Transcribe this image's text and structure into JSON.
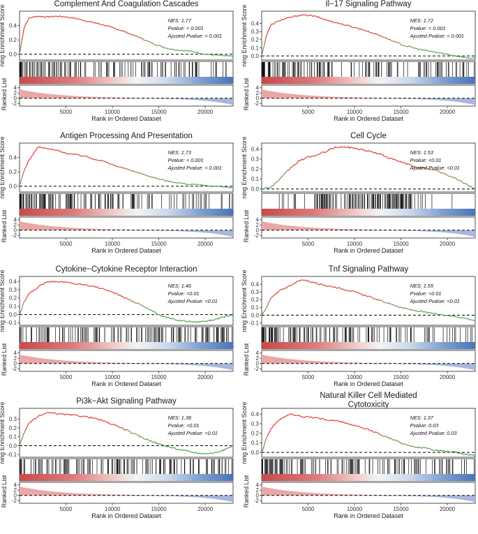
{
  "chart_data": [
    {
      "type": "line",
      "title": "Complement And Coagulation Cascades",
      "ylabel": "ning Enrichment Score",
      "ylabel2": "Ranked List",
      "xlabel": "Rank in Ordered Dataset",
      "x_ticks": [
        5000,
        10000,
        15000,
        20000
      ],
      "es_ticks": [
        0.0,
        0.2,
        0.4
      ],
      "rank_ticks": [
        4,
        2,
        0,
        -2
      ],
      "xlim": [
        0,
        23000
      ],
      "es_ylim": [
        -0.08,
        0.6
      ],
      "rank_ylim": [
        -3,
        5
      ],
      "stats": [
        "NES: 1.77",
        "Pvalue: < 0.001",
        "Ajusted Pvalue: < 0.001"
      ],
      "es_curve": {
        "x": [
          0,
          500,
          1000,
          1500,
          2000,
          3000,
          4000,
          5000,
          6000,
          7000,
          8000,
          9000,
          10000,
          11000,
          12000,
          13000,
          14000,
          15000,
          16000,
          17000,
          18000,
          19000,
          20000,
          21000,
          22000,
          23000
        ],
        "y": [
          0.0,
          0.38,
          0.5,
          0.52,
          0.53,
          0.52,
          0.53,
          0.52,
          0.5,
          0.47,
          0.44,
          0.41,
          0.37,
          0.33,
          0.28,
          0.23,
          0.17,
          0.12,
          0.08,
          0.06,
          0.05,
          0.03,
          0.0,
          -0.01,
          -0.02,
          -0.03
        ]
      },
      "hit_density": "front"
    },
    {
      "type": "line",
      "title": "Il−17 Signaling Pathway",
      "ylabel": "ning Enrichment Score",
      "ylabel2": "Ranked List",
      "xlabel": "Rank in Ordered Dataset",
      "x_ticks": [
        5000,
        10000,
        15000,
        20000
      ],
      "es_ticks": [
        0.0,
        0.1,
        0.2,
        0.3,
        0.4
      ],
      "rank_ticks": [
        4,
        2,
        0,
        -2
      ],
      "xlim": [
        0,
        23000
      ],
      "es_ylim": [
        -0.05,
        0.55
      ],
      "rank_ylim": [
        -3,
        5
      ],
      "stats": [
        "NES: 1.72",
        "Pvalue: < 0.001",
        "Ajusted Pvalue: < 0.001"
      ],
      "es_curve": {
        "x": [
          0,
          500,
          1000,
          2000,
          3000,
          4000,
          5000,
          6000,
          7000,
          8000,
          9000,
          10000,
          11000,
          12000,
          13000,
          14000,
          15000,
          16000,
          17000,
          18000,
          19000,
          20000,
          21000,
          22000,
          23000
        ],
        "y": [
          0.0,
          0.25,
          0.38,
          0.44,
          0.47,
          0.5,
          0.5,
          0.48,
          0.44,
          0.41,
          0.38,
          0.35,
          0.32,
          0.28,
          0.24,
          0.19,
          0.14,
          0.11,
          0.08,
          0.06,
          0.04,
          0.02,
          0.0,
          -0.02,
          -0.03
        ]
      },
      "hit_density": "front"
    },
    {
      "type": "line",
      "title": "Antigen Processing And Presentation",
      "ylabel": "ning Enrichment Score",
      "ylabel2": "Ranked List",
      "xlabel": "Rank in Ordered Dataset",
      "x_ticks": [
        5000,
        10000,
        15000,
        20000
      ],
      "es_ticks": [
        0.0,
        0.2,
        0.4
      ],
      "rank_ticks": [
        4,
        2,
        0,
        -2
      ],
      "xlim": [
        0,
        23000
      ],
      "es_ylim": [
        -0.08,
        0.6
      ],
      "rank_ylim": [
        -3,
        5
      ],
      "stats": [
        "NES: 1.73",
        "Pvalue: < 0.001",
        "Ajusted Pvalue: < 0.001"
      ],
      "es_curve": {
        "x": [
          0,
          500,
          1000,
          1500,
          2000,
          3000,
          4000,
          5000,
          6000,
          7000,
          8000,
          9000,
          10000,
          11000,
          12000,
          13000,
          14000,
          15000,
          16000,
          17000,
          18000,
          19000,
          20000,
          21000,
          22000,
          23000
        ],
        "y": [
          0.0,
          0.22,
          0.36,
          0.45,
          0.55,
          0.52,
          0.5,
          0.46,
          0.44,
          0.42,
          0.38,
          0.35,
          0.3,
          0.26,
          0.22,
          0.18,
          0.14,
          0.1,
          0.07,
          0.05,
          0.03,
          0.02,
          0.01,
          0.0,
          -0.01,
          -0.02
        ]
      },
      "hit_density": "front"
    },
    {
      "type": "line",
      "title": "Cell Cycle",
      "ylabel": "ning Enrichment Score",
      "ylabel2": "Ranked List",
      "xlabel": "Rank in Ordered Dataset",
      "x_ticks": [
        5000,
        10000,
        15000,
        20000
      ],
      "es_ticks": [
        0.0,
        0.1,
        0.2,
        0.3,
        0.4
      ],
      "rank_ticks": [
        4,
        2,
        0,
        -2
      ],
      "xlim": [
        0,
        23000
      ],
      "es_ylim": [
        -0.03,
        0.46
      ],
      "rank_ylim": [
        -3,
        5
      ],
      "stats": [
        "NES: 1.53",
        "Pvalue: <0.01",
        "Ajusted Pvalue: <0.01"
      ],
      "es_curve": {
        "x": [
          0,
          1000,
          2000,
          3000,
          4000,
          5000,
          6000,
          7000,
          8000,
          9000,
          10000,
          11000,
          12000,
          13000,
          14000,
          15000,
          16000,
          17000,
          18000,
          19000,
          20000,
          21000,
          22000,
          23000
        ],
        "y": [
          0.0,
          0.02,
          0.1,
          0.2,
          0.28,
          0.32,
          0.34,
          0.38,
          0.42,
          0.42,
          0.41,
          0.39,
          0.37,
          0.34,
          0.3,
          0.27,
          0.24,
          0.21,
          0.2,
          0.18,
          0.14,
          0.1,
          0.05,
          0.0
        ]
      },
      "hit_density": "middle"
    },
    {
      "type": "line",
      "title": "Cytokine−Cytokine Receptor Interaction",
      "ylabel": "ning Enrichment Score",
      "ylabel2": "Ranked List",
      "xlabel": "Rank in Ordered Dataset",
      "x_ticks": [
        5000,
        10000,
        15000,
        20000
      ],
      "es_ticks": [
        -0.1,
        0.0,
        0.1,
        0.2,
        0.3,
        0.4
      ],
      "rank_ticks": [
        4,
        2,
        0,
        -2
      ],
      "xlim": [
        0,
        23000
      ],
      "es_ylim": [
        -0.13,
        0.46
      ],
      "rank_ylim": [
        -3,
        5
      ],
      "stats": [
        "NES: 1.46",
        "Pvalue: <0.01",
        "Ajusted Pvalue: <0.01"
      ],
      "es_curve": {
        "x": [
          0,
          500,
          1000,
          2000,
          3000,
          4000,
          5000,
          6000,
          7000,
          8000,
          9000,
          10000,
          11000,
          12000,
          13000,
          14000,
          15000,
          16000,
          17000,
          18000,
          19000,
          20000,
          21000,
          22000,
          23000
        ],
        "y": [
          0.0,
          0.15,
          0.25,
          0.33,
          0.4,
          0.4,
          0.39,
          0.37,
          0.36,
          0.34,
          0.31,
          0.27,
          0.22,
          0.17,
          0.12,
          0.06,
          0.0,
          -0.04,
          -0.07,
          -0.08,
          -0.09,
          -0.08,
          -0.06,
          -0.03,
          0.0
        ]
      },
      "hit_density": "uniform"
    },
    {
      "type": "line",
      "title": "Tnf Signaling Pathway",
      "ylabel": "ning Enrichment Score",
      "ylabel2": "Ranked List",
      "xlabel": "Rank in Ordered Dataset",
      "x_ticks": [
        5000,
        10000,
        15000,
        20000
      ],
      "es_ticks": [
        -0.1,
        0.0,
        0.1,
        0.2,
        0.3,
        0.4
      ],
      "rank_ticks": [
        4,
        2,
        0,
        -2
      ],
      "xlim": [
        0,
        23000
      ],
      "es_ylim": [
        -0.13,
        0.5
      ],
      "rank_ylim": [
        -3,
        5
      ],
      "stats": [
        "NES: 1.55",
        "Pvalue: <0.01",
        "Ajusted Pvalue: <0.01"
      ],
      "es_curve": {
        "x": [
          0,
          500,
          1000,
          2000,
          3000,
          4000,
          4500,
          5000,
          6000,
          7000,
          8000,
          9000,
          10000,
          11000,
          12000,
          13000,
          14000,
          15000,
          16000,
          17000,
          18000,
          19000,
          20000,
          21000,
          22000,
          23000
        ],
        "y": [
          0.0,
          0.1,
          0.22,
          0.32,
          0.38,
          0.44,
          0.46,
          0.44,
          0.41,
          0.38,
          0.36,
          0.33,
          0.3,
          0.26,
          0.22,
          0.18,
          0.14,
          0.1,
          0.07,
          0.05,
          0.03,
          0.01,
          0.0,
          -0.02,
          -0.04,
          -0.07
        ]
      },
      "hit_density": "front"
    },
    {
      "type": "line",
      "title": "Pi3k−Akt Signaling Pathway",
      "ylabel": "ning Enrichment Score",
      "ylabel2": "Ranked List",
      "xlabel": "Rank in Ordered Dataset",
      "x_ticks": [
        5000,
        10000,
        15000,
        20000
      ],
      "es_ticks": [
        -0.1,
        0.0,
        0.1,
        0.2,
        0.3
      ],
      "rank_ticks": [
        4,
        2,
        0,
        -2
      ],
      "xlim": [
        0,
        23000
      ],
      "es_ylim": [
        -0.13,
        0.42
      ],
      "rank_ylim": [
        -3,
        5
      ],
      "stats": [
        "NES: 1.38",
        "Pvalue: <0.01",
        "Ajusted Pvalue: <0.01"
      ],
      "es_curve": {
        "x": [
          0,
          500,
          1000,
          2000,
          3000,
          4000,
          5000,
          6000,
          7000,
          8000,
          9000,
          10000,
          11000,
          12000,
          13000,
          14000,
          15000,
          16000,
          17000,
          18000,
          19000,
          20000,
          21000,
          22000,
          23000
        ],
        "y": [
          0.0,
          0.15,
          0.25,
          0.33,
          0.37,
          0.36,
          0.35,
          0.34,
          0.33,
          0.31,
          0.28,
          0.24,
          0.2,
          0.15,
          0.1,
          0.06,
          0.02,
          -0.01,
          -0.04,
          -0.06,
          -0.08,
          -0.09,
          -0.08,
          -0.05,
          0.0
        ]
      },
      "hit_density": "uniform"
    },
    {
      "type": "line",
      "title": [
        "Natural Killer Cell Mediated",
        "Cytotoxicity"
      ],
      "ylabel": "ning Enrichment Score",
      "ylabel2": "Ranked List",
      "xlabel": "Rank in Ordered Dataset",
      "x_ticks": [
        5000,
        10000,
        15000,
        20000
      ],
      "es_ticks": [
        0.0,
        0.1,
        0.2,
        0.3,
        0.4
      ],
      "rank_ticks": [
        4,
        2,
        0,
        -2
      ],
      "xlim": [
        0,
        23000
      ],
      "es_ylim": [
        -0.05,
        0.46
      ],
      "rank_ylim": [
        -3,
        5
      ],
      "stats": [
        "NES: 1.37",
        "Pvalue: 0.03",
        "Ajusted Pvalue: 0.03"
      ],
      "es_curve": {
        "x": [
          0,
          500,
          1000,
          2000,
          3000,
          4000,
          5000,
          6000,
          7000,
          8000,
          9000,
          10000,
          11000,
          12000,
          13000,
          14000,
          15000,
          16000,
          17000,
          18000,
          19000,
          20000,
          21000,
          22000,
          23000
        ],
        "y": [
          0.0,
          0.15,
          0.25,
          0.35,
          0.4,
          0.38,
          0.37,
          0.36,
          0.34,
          0.33,
          0.31,
          0.28,
          0.25,
          0.22,
          0.18,
          0.14,
          0.1,
          0.07,
          0.05,
          0.04,
          0.02,
          0.01,
          0.0,
          -0.02,
          -0.03
        ]
      },
      "hit_density": "front"
    }
  ],
  "colors": {
    "curve_high": "#e0463c",
    "curve_mid": "#9a8f62",
    "curve_low": "#4fa85a",
    "hit_line": "#111111",
    "band_red": "#c94a4a",
    "band_blue": "#4a74b8",
    "rank_pos": "#e9a7a7",
    "rank_neg": "#a9b7e0",
    "dashed": "#000000"
  }
}
